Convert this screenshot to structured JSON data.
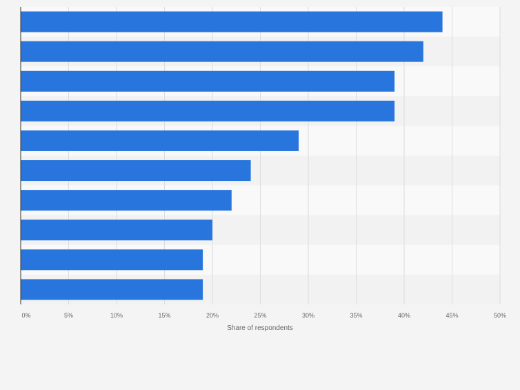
{
  "chart_data": {
    "type": "bar",
    "orientation": "horizontal",
    "categories": [
      "",
      "",
      "",
      "",
      "",
      "",
      "",
      "",
      "",
      ""
    ],
    "values": [
      44,
      42,
      39,
      39,
      29,
      24,
      22,
      20,
      19,
      19
    ],
    "unit": "%",
    "xlabel": "Share of respondents",
    "ylabel": "",
    "xlim": [
      0,
      50
    ],
    "ticks": [
      "0%",
      "5%",
      "10%",
      "15%",
      "20%",
      "25%",
      "30%",
      "35%",
      "40%",
      "45%",
      "50%"
    ],
    "grid": true,
    "legend": "none",
    "colors": {
      "bar": "#2876dd",
      "grid": "#dcdcdc",
      "axis": "#333333",
      "tick_text": "#666666",
      "band_light": "#f9f9f9",
      "band_dark": "#f2f2f2",
      "background": "#f4f4f4"
    }
  }
}
